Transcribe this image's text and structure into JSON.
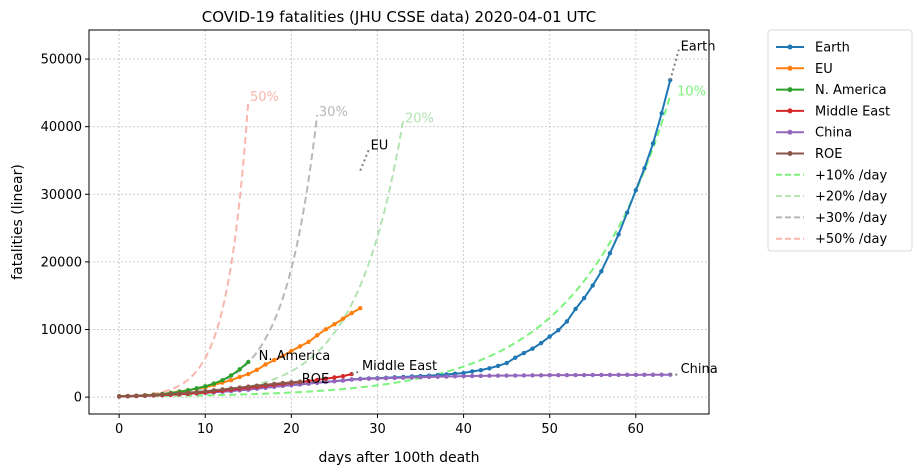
{
  "chart_data": {
    "type": "line",
    "title": "COVID-19 fatalities (JHU CSSE data) 2020-04-01 UTC",
    "xlabel": "days after 100th death",
    "ylabel": "fatalities (linear)",
    "xlim": [
      -3.5,
      68.5
    ],
    "ylim": [
      -2500,
      54300
    ],
    "xticks": [
      0,
      10,
      20,
      30,
      40,
      50,
      60
    ],
    "yticks": [
      0,
      10000,
      20000,
      30000,
      40000,
      50000
    ],
    "grid": true,
    "legend_position": "outside-right",
    "series": [
      {
        "name": "Earth",
        "color": "#1f77b4",
        "marker": true,
        "x": [
          0,
          1,
          2,
          3,
          4,
          5,
          6,
          7,
          8,
          9,
          10,
          11,
          12,
          13,
          14,
          15,
          16,
          17,
          18,
          19,
          20,
          21,
          22,
          23,
          24,
          25,
          26,
          27,
          28,
          29,
          30,
          31,
          32,
          33,
          34,
          35,
          36,
          37,
          38,
          39,
          40,
          41,
          42,
          43,
          44,
          45,
          46,
          47,
          48,
          49,
          50,
          51,
          52,
          53,
          54,
          55,
          56,
          57,
          58,
          59,
          60,
          61,
          62,
          63,
          64
        ],
        "y": [
          100,
          130,
          170,
          213,
          260,
          304,
          362,
          426,
          492,
          565,
          638,
          724,
          813,
          910,
          1018,
          1115,
          1261,
          1383,
          1526,
          1666,
          1770,
          1868,
          2009,
          2123,
          2247,
          2360,
          2460,
          2618,
          2699,
          2763,
          2800,
          2858,
          2923,
          2977,
          3050,
          3116,
          3159,
          3254,
          3348,
          3460,
          3558,
          3802,
          3988,
          4262,
          4615,
          5027,
          5835,
          6516,
          7160,
          7987,
          8951,
          9897,
          11184,
          13039,
          14654,
          16508,
          18603,
          21281,
          24066,
          27296,
          30604,
          33832,
          37514,
          41979,
          46896
        ]
      },
      {
        "name": "EU",
        "color": "#ff7f0e",
        "marker": true,
        "x": [
          0,
          1,
          2,
          3,
          4,
          5,
          6,
          7,
          8,
          9,
          10,
          11,
          12,
          13,
          14,
          15,
          16,
          17,
          18,
          19,
          20,
          21,
          22,
          23,
          24,
          25,
          26,
          27,
          28
        ],
        "y": [
          107,
          148,
          197,
          233,
          366,
          463,
          631,
          827,
          1016,
          1266,
          1441,
          1809,
          2158,
          2503,
          2978,
          3405,
          4032,
          4825,
          5476,
          6077,
          6820,
          7503,
          8165,
          9134,
          10023,
          10779,
          11591,
          12428,
          13155
        ]
      },
      {
        "name": "N. America",
        "color": "#2ca02c",
        "marker": true,
        "x": [
          0,
          1,
          2,
          3,
          4,
          5,
          6,
          7,
          8,
          9,
          10,
          11,
          12,
          13,
          14,
          15
        ],
        "y": [
          108,
          150,
          200,
          260,
          340,
          450,
          600,
          780,
          1000,
          1300,
          1600,
          2000,
          2500,
          3200,
          4100,
          5200
        ]
      },
      {
        "name": "Middle East",
        "color": "#d62728",
        "marker": true,
        "x": [
          0,
          1,
          2,
          3,
          4,
          5,
          6,
          7,
          8,
          9,
          10,
          11,
          12,
          13,
          14,
          15,
          16,
          17,
          18,
          19,
          20,
          21,
          22,
          23,
          24,
          25,
          26,
          27
        ],
        "y": [
          100,
          130,
          160,
          200,
          240,
          290,
          350,
          420,
          500,
          590,
          700,
          820,
          950,
          1080,
          1220,
          1360,
          1500,
          1650,
          1800,
          1950,
          2080,
          2220,
          2380,
          2540,
          2720,
          2900,
          3100,
          3400
        ]
      },
      {
        "name": "China",
        "color": "#9467bd",
        "marker": true,
        "x": [
          0,
          1,
          2,
          3,
          4,
          5,
          6,
          7,
          8,
          9,
          10,
          11,
          12,
          13,
          14,
          15,
          16,
          17,
          18,
          19,
          20,
          21,
          22,
          23,
          24,
          25,
          26,
          27,
          28,
          29,
          30,
          31,
          32,
          33,
          34,
          35,
          36,
          37,
          38,
          39,
          40,
          41,
          42,
          43,
          44,
          45,
          46,
          47,
          48,
          49,
          50,
          51,
          52,
          53,
          54,
          55,
          56,
          57,
          58,
          59,
          60,
          61,
          62,
          63,
          64
        ],
        "y": [
          106,
          132,
          170,
          213,
          259,
          304,
          361,
          425,
          490,
          562,
          639,
          722,
          811,
          908,
          1016,
          1113,
          1259,
          1380,
          1523,
          1665,
          1770,
          1868,
          2004,
          2118,
          2236,
          2345,
          2442,
          2592,
          2663,
          2715,
          2744,
          2788,
          2835,
          2870,
          2912,
          2943,
          2981,
          3012,
          3042,
          3070,
          3097,
          3119,
          3136,
          3158,
          3169,
          3176,
          3189,
          3199,
          3213,
          3226,
          3237,
          3245,
          3249,
          3253,
          3261,
          3270,
          3277,
          3281,
          3287,
          3292,
          3295,
          3300,
          3304,
          3305,
          3309
        ]
      },
      {
        "name": "ROE",
        "color": "#8c564b",
        "marker": true,
        "x": [
          0,
          1,
          2,
          3,
          4,
          5,
          6,
          7,
          8,
          9,
          10,
          11,
          12,
          13,
          14,
          15,
          16,
          17,
          18,
          19,
          20,
          21
        ],
        "y": [
          100,
          140,
          190,
          240,
          300,
          370,
          450,
          540,
          640,
          750,
          870,
          1000,
          1130,
          1270,
          1410,
          1550,
          1690,
          1820,
          1950,
          2070,
          2180,
          2280
        ]
      },
      {
        "name": "+10% /day",
        "color": "#7df27d",
        "dashed": true,
        "x0": 0,
        "x1": 64,
        "y0": 100,
        "rate": 0.1
      },
      {
        "name": "+20% /day",
        "color": "#b2e3b2",
        "dashed": true,
        "x0": 0,
        "x1": 33,
        "y0": 100,
        "rate": 0.2
      },
      {
        "name": "+30% /day",
        "color": "#b8b8b8",
        "dashed": true,
        "x0": 0,
        "x1": 23,
        "y0": 100,
        "rate": 0.3
      },
      {
        "name": "+50% /day",
        "color": "#f9b6ae",
        "dashed": true,
        "x0": 0,
        "x1": 15,
        "y0": 100,
        "rate": 0.5
      }
    ],
    "projections": [
      {
        "x": [
          64,
          65
        ],
        "y": [
          46896,
          51400
        ],
        "color": "#7f7f7f"
      },
      {
        "x": [
          28,
          29
        ],
        "y": [
          33500,
          36600
        ],
        "color": "#7f7f7f"
      },
      {
        "x": [
          27,
          28
        ],
        "y": [
          3400,
          3850
        ],
        "color": "#7f7f7f"
      },
      {
        "x": [
          64,
          65
        ],
        "y": [
          3309,
          3320
        ],
        "color": "#7f7f7f"
      }
    ],
    "annotations": [
      {
        "text": "Earth",
        "x": 65.2,
        "y": 51300,
        "color": "#000000"
      },
      {
        "text": "EU",
        "x": 29.2,
        "y": 36600,
        "color": "#000000"
      },
      {
        "text": "N. America",
        "x": 16.2,
        "y": 5500,
        "color": "#000000"
      },
      {
        "text": "Middle East",
        "x": 28.2,
        "y": 4000,
        "color": "#000000"
      },
      {
        "text": "ROE",
        "x": 21.2,
        "y": 2100,
        "color": "#000000"
      },
      {
        "text": "China",
        "x": 65.2,
        "y": 3600,
        "color": "#000000"
      },
      {
        "text": "10%",
        "x": 64.8,
        "y": 44600,
        "color": "#7df27d"
      },
      {
        "text": "20%",
        "x": 33.2,
        "y": 40600,
        "color": "#b2e3b2"
      },
      {
        "text": "30%",
        "x": 23.2,
        "y": 41600,
        "color": "#b8b8b8"
      },
      {
        "text": "50%",
        "x": 15.2,
        "y": 43800,
        "color": "#f9b6ae"
      }
    ]
  }
}
